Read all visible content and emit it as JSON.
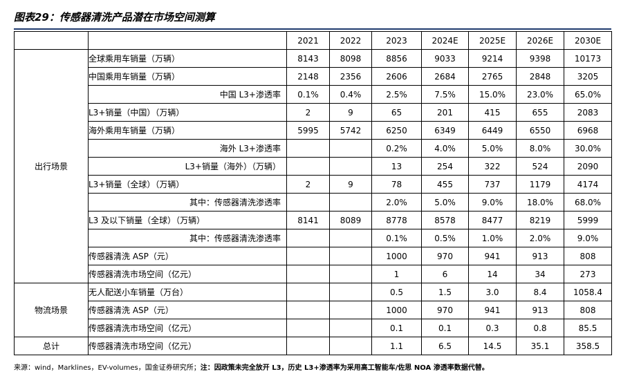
{
  "title": "图表29：传感器清洗产品潜在市场空间测算",
  "years": [
    "2021",
    "2022",
    "2023",
    "2024E",
    "2025E",
    "2026E",
    "2030E"
  ],
  "sections": [
    {
      "name": "出行场景",
      "rows": [
        {
          "label": "全球乘用车销量（万辆）",
          "values": [
            "8143",
            "8098",
            "8856",
            "9033",
            "9214",
            "9398",
            "10173"
          ]
        },
        {
          "label": "中国乘用车销量（万辆）",
          "values": [
            "2148",
            "2356",
            "2606",
            "2684",
            "2765",
            "2848",
            "3205"
          ]
        },
        {
          "label": "中国 L3+渗透率",
          "values": [
            "0.1%",
            "0.4%",
            "2.5%",
            "7.5%",
            "15.0%",
            "23.0%",
            "65.0%"
          ]
        },
        {
          "label": "L3+销量（中国）（万辆）",
          "values": [
            "2",
            "9",
            "65",
            "201",
            "415",
            "655",
            "2083"
          ]
        },
        {
          "label": "海外乘用车销量（万辆）",
          "values": [
            "5995",
            "5742",
            "6250",
            "6349",
            "6449",
            "6550",
            "6968"
          ]
        },
        {
          "label": "海外 L3+渗透率",
          "values": [
            "",
            "",
            "0.2%",
            "4.0%",
            "5.0%",
            "8.0%",
            "30.0%"
          ]
        },
        {
          "label": "L3+销量（海外）（万辆）",
          "values": [
            "",
            "",
            "13",
            "254",
            "322",
            "524",
            "2090"
          ]
        },
        {
          "label": "L3+销量（全球）（万辆）",
          "values": [
            "2",
            "9",
            "78",
            "455",
            "737",
            "1179",
            "4174"
          ]
        },
        {
          "label": "其中：传感器清洗渗透率",
          "values": [
            "",
            "",
            "2.0%",
            "5.0%",
            "9.0%",
            "18.0%",
            "68.0%"
          ]
        },
        {
          "label": "L3 及以下销量（全球）（万辆）",
          "values": [
            "8141",
            "8089",
            "8778",
            "8578",
            "8477",
            "8219",
            "5999"
          ]
        },
        {
          "label": "其中：传感器清洗渗透率",
          "values": [
            "",
            "",
            "0.1%",
            "0.5%",
            "1.0%",
            "2.0%",
            "9.0%"
          ]
        },
        {
          "label": "传感器清洗 ASP（元）",
          "values": [
            "",
            "",
            "1000",
            "970",
            "941",
            "913",
            "808"
          ]
        },
        {
          "label": "传感器清洗市场空间（亿元）",
          "values": [
            "",
            "",
            "1",
            "6",
            "14",
            "34",
            "273"
          ]
        }
      ]
    },
    {
      "name": "物流场景",
      "rows": [
        {
          "label": "无人配送小车销量（万台）",
          "values": [
            "",
            "",
            "0.5",
            "1.5",
            "3.0",
            "8.4",
            "1058.4"
          ]
        },
        {
          "label": "传感器清洗 ASP（元）",
          "values": [
            "",
            "",
            "1000",
            "970",
            "941",
            "913",
            "808"
          ]
        },
        {
          "label": "传感器清洗市场空间（亿元）",
          "values": [
            "",
            "",
            "0.1",
            "0.1",
            "0.3",
            "0.8",
            "85.5"
          ]
        }
      ]
    },
    {
      "name": "总计",
      "rows": [
        {
          "label": "传感器清洗市场空间（亿元）",
          "values": [
            "",
            "",
            "1.1",
            "6.5",
            "14.5",
            "35.1",
            "358.5"
          ]
        }
      ]
    }
  ],
  "footer": {
    "source": "来源：wind，Marklines，EV-volumes，国金证券研究所；",
    "note": "注：因政策未完全放开 L3，历史 L3+渗透率为采用高工智能车/佐思 NOA 渗透率数据代替。"
  }
}
